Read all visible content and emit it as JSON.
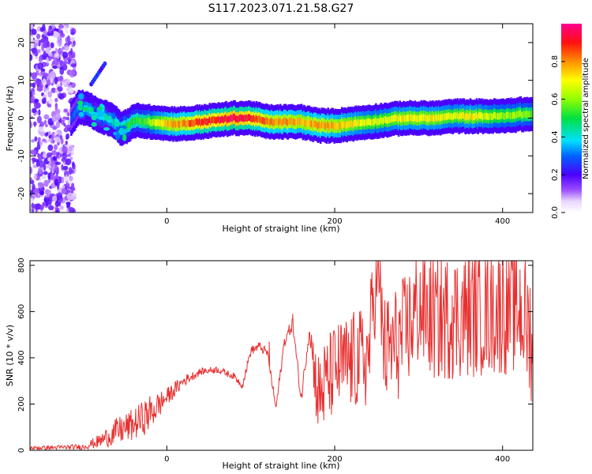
{
  "title": "S117.2023.071.21.58.G27",
  "colors": {
    "snr_line": "#e83030",
    "spectrum_background": "#ffffff"
  },
  "chart_data": [
    {
      "type": "heatmap",
      "xlabel": "Height of straight line (km)",
      "ylabel": "Frequency (Hz)",
      "xlim": [
        -163,
        436
      ],
      "ylim": [
        -25,
        25
      ],
      "xticks": [
        0,
        200,
        400
      ],
      "yticks": [
        -20,
        -10,
        0,
        10,
        20
      ],
      "colorbar": {
        "label": "Normalized spectral amplitude",
        "range": [
          0,
          1
        ],
        "ticks": [
          "0.0",
          "0.2",
          "0.4",
          "0.6",
          "0.8"
        ],
        "colormap": "rainbow"
      },
      "ridge": {
        "x": [
          -115,
          -105,
          -95,
          -85,
          -75,
          -65,
          -55,
          -45,
          -35,
          -25,
          -15,
          0,
          20,
          40,
          60,
          80,
          100,
          120,
          140,
          160,
          180,
          200,
          220,
          240,
          260,
          280,
          300,
          320,
          340,
          360,
          380,
          400,
          420,
          436
        ],
        "frequency_hz": [
          0,
          3,
          2.5,
          1,
          0.2,
          -0.5,
          -3,
          -1.5,
          -0.5,
          -1,
          -1,
          -1.5,
          -1.5,
          -1,
          -0.5,
          0,
          0,
          -1,
          -1,
          -1,
          -2,
          -2,
          -1.5,
          -1,
          -0.5,
          0,
          0,
          0,
          0.5,
          0.5,
          0.5,
          0.5,
          1,
          1
        ],
        "amplitude": [
          0.3,
          0.35,
          0.45,
          0.4,
          0.4,
          0.45,
          0.5,
          0.55,
          0.55,
          0.6,
          0.7,
          0.8,
          0.85,
          0.95,
          0.95,
          1.0,
          0.95,
          0.85,
          0.85,
          0.8,
          0.85,
          0.8,
          0.75,
          0.7,
          0.7,
          0.75,
          0.75,
          0.75,
          0.7,
          0.75,
          0.7,
          0.65,
          0.65,
          0.6
        ]
      },
      "noise_region_x": [
        -163,
        -110
      ]
    },
    {
      "type": "line",
      "xlabel": "Height of straight line (km)",
      "ylabel": "SNR (10 * v/v)",
      "xlim": [
        -163,
        436
      ],
      "ylim": [
        0,
        820
      ],
      "xticks": [
        0,
        200,
        400
      ],
      "yticks": [
        0,
        200,
        400,
        600,
        800
      ],
      "envelope": {
        "x": [
          -163,
          -130,
          -100,
          -80,
          -60,
          -40,
          -20,
          0,
          20,
          40,
          60,
          80,
          90,
          100,
          110,
          120,
          130,
          140,
          150,
          160,
          170,
          180,
          200,
          220,
          240,
          250,
          260,
          280,
          300,
          320,
          340,
          360,
          380,
          400,
          420,
          436
        ],
        "y": [
          10,
          12,
          15,
          40,
          80,
          110,
          160,
          230,
          300,
          340,
          350,
          320,
          280,
          430,
          450,
          420,
          180,
          470,
          550,
          220,
          530,
          230,
          350,
          380,
          400,
          800,
          420,
          480,
          620,
          560,
          580,
          590,
          600,
          610,
          620,
          480
        ],
        "spread": [
          8,
          10,
          12,
          30,
          60,
          70,
          80,
          40,
          25,
          15,
          15,
          15,
          15,
          20,
          20,
          20,
          20,
          25,
          30,
          30,
          40,
          200,
          200,
          220,
          230,
          240,
          250,
          260,
          270,
          270,
          280,
          280,
          280,
          290,
          290,
          290
        ]
      },
      "peaks": [
        {
          "x": 252,
          "y": 800
        },
        {
          "x": 400,
          "y": 780
        },
        {
          "x": 150,
          "y": 590
        },
        {
          "x": 102,
          "y": 450
        },
        {
          "x": 122,
          "y": 470
        },
        {
          "x": 305,
          "y": 700
        },
        {
          "x": 340,
          "y": 670
        },
        {
          "x": 368,
          "y": 630
        }
      ]
    }
  ]
}
